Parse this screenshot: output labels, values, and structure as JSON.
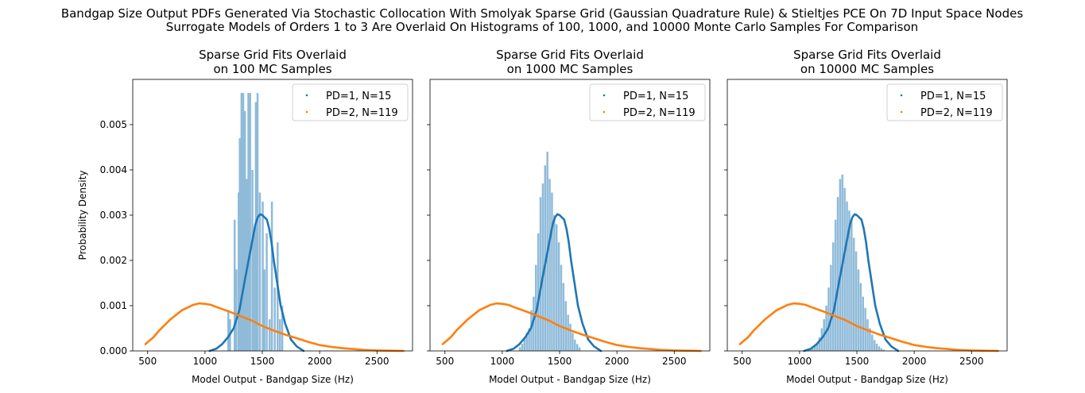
{
  "figure": {
    "suptitle_line1": "Bandgap Size Output PDFs Generated Via Stochastic Collocation With Smolyak Sparse Grid (Gaussian Quadrature Rule) & Stieltjes PCE On 7D Input Space Nodes",
    "suptitle_line2": "Surrogate Models of Orders 1 to 3 Are Overlaid On Histograms of 100, 1000, and 10000 Monte Carlo Samples For Comparison",
    "ylabel": "Probability Density",
    "xlabel": "Model Output - Bandgap Size (Hz)"
  },
  "colors": {
    "pd1": "#1f77b4",
    "pd2": "#ff7f0e",
    "hist": "#8fbbd9"
  },
  "chart_data": [
    {
      "type": "line",
      "title_line1": "Sparse Grid Fits Overlaid",
      "title_line2": "on 100 MC Samples",
      "xlim": [
        370,
        2810
      ],
      "ylim": [
        0,
        0.006
      ],
      "xticks": [
        500,
        1000,
        1500,
        2000,
        2500
      ],
      "yticks": [
        0.0,
        0.001,
        0.002,
        0.003,
        0.004,
        0.005
      ],
      "ytick_labels": [
        "0.000",
        "0.001",
        "0.002",
        "0.003",
        "0.004",
        "0.005"
      ],
      "legend": [
        "PD=1, N=15",
        "PD=2, N=119"
      ],
      "legend_loc": "upper right",
      "histogram": {
        "bins": [
          {
            "x": 1195,
            "y": 0.0009
          },
          {
            "x": 1210,
            "y": 0.0007
          },
          {
            "x": 1250,
            "y": 0.0029
          },
          {
            "x": 1265,
            "y": 0.0018
          },
          {
            "x": 1285,
            "y": 0.0035
          },
          {
            "x": 1295,
            "y": 0.0047
          },
          {
            "x": 1310,
            "y": 0.0057
          },
          {
            "x": 1325,
            "y": 0.0057
          },
          {
            "x": 1340,
            "y": 0.0053
          },
          {
            "x": 1355,
            "y": 0.0038
          },
          {
            "x": 1370,
            "y": 0.0057
          },
          {
            "x": 1385,
            "y": 0.0057
          },
          {
            "x": 1405,
            "y": 0.004
          },
          {
            "x": 1420,
            "y": 0.0026
          },
          {
            "x": 1435,
            "y": 0.0055
          },
          {
            "x": 1450,
            "y": 0.0057
          },
          {
            "x": 1470,
            "y": 0.0035
          },
          {
            "x": 1495,
            "y": 0.0033
          },
          {
            "x": 1510,
            "y": 0.0018
          },
          {
            "x": 1530,
            "y": 0.0026
          },
          {
            "x": 1555,
            "y": 0.0007
          },
          {
            "x": 1575,
            "y": 0.0033
          },
          {
            "x": 1600,
            "y": 0.0014
          },
          {
            "x": 1625,
            "y": 0.0024
          },
          {
            "x": 1645,
            "y": 0.0007
          },
          {
            "x": 1665,
            "y": 0.001
          }
        ]
      }
    },
    {
      "type": "line",
      "title_line1": "Sparse Grid Fits Overlaid",
      "title_line2": "on 1000 MC Samples",
      "xlim": [
        370,
        2810
      ],
      "ylim": [
        0,
        0.006
      ],
      "xticks": [
        500,
        1000,
        1500,
        2000,
        2500
      ],
      "yticks": [
        0.0,
        0.001,
        0.002,
        0.003,
        0.004,
        0.005
      ],
      "legend": [
        "PD=1, N=15",
        "PD=2, N=119"
      ],
      "legend_loc": "upper right",
      "histogram": {
        "bins": [
          {
            "x": 1145,
            "y": 8e-05
          },
          {
            "x": 1165,
            "y": 0.00016
          },
          {
            "x": 1185,
            "y": 0.0003
          },
          {
            "x": 1205,
            "y": 0.0004
          },
          {
            "x": 1225,
            "y": 0.0005
          },
          {
            "x": 1245,
            "y": 0.0009
          },
          {
            "x": 1265,
            "y": 0.0012
          },
          {
            "x": 1285,
            "y": 0.0019
          },
          {
            "x": 1305,
            "y": 0.0026
          },
          {
            "x": 1325,
            "y": 0.0034
          },
          {
            "x": 1345,
            "y": 0.0037
          },
          {
            "x": 1365,
            "y": 0.0041
          },
          {
            "x": 1385,
            "y": 0.0044
          },
          {
            "x": 1405,
            "y": 0.0038
          },
          {
            "x": 1425,
            "y": 0.0035
          },
          {
            "x": 1445,
            "y": 0.003
          },
          {
            "x": 1465,
            "y": 0.0028
          },
          {
            "x": 1485,
            "y": 0.0024
          },
          {
            "x": 1505,
            "y": 0.0019
          },
          {
            "x": 1525,
            "y": 0.0015
          },
          {
            "x": 1545,
            "y": 0.0011
          },
          {
            "x": 1565,
            "y": 0.0008
          },
          {
            "x": 1585,
            "y": 0.0006
          },
          {
            "x": 1605,
            "y": 0.0004
          },
          {
            "x": 1625,
            "y": 0.00025
          },
          {
            "x": 1645,
            "y": 0.00015
          },
          {
            "x": 1665,
            "y": 8e-05
          }
        ]
      }
    },
    {
      "type": "line",
      "title_line1": "Sparse Grid Fits Overlaid",
      "title_line2": "on 10000 MC Samples",
      "xlim": [
        370,
        2810
      ],
      "ylim": [
        0,
        0.006
      ],
      "xticks": [
        500,
        1000,
        1500,
        2000,
        2500
      ],
      "yticks": [
        0.0,
        0.001,
        0.002,
        0.003,
        0.004,
        0.005
      ],
      "legend": [
        "PD=1, N=15",
        "PD=2, N=119"
      ],
      "legend_loc": "upper right",
      "histogram": {
        "bins": [
          {
            "x": 1085,
            "y": 3e-05
          },
          {
            "x": 1105,
            "y": 6e-05
          },
          {
            "x": 1125,
            "y": 0.0001
          },
          {
            "x": 1145,
            "y": 0.00018
          },
          {
            "x": 1165,
            "y": 0.0003
          },
          {
            "x": 1185,
            "y": 0.0005
          },
          {
            "x": 1205,
            "y": 0.0007
          },
          {
            "x": 1225,
            "y": 0.001
          },
          {
            "x": 1245,
            "y": 0.0014
          },
          {
            "x": 1265,
            "y": 0.0019
          },
          {
            "x": 1285,
            "y": 0.0024
          },
          {
            "x": 1305,
            "y": 0.0029
          },
          {
            "x": 1325,
            "y": 0.0034
          },
          {
            "x": 1345,
            "y": 0.0038
          },
          {
            "x": 1365,
            "y": 0.0039
          },
          {
            "x": 1385,
            "y": 0.0036
          },
          {
            "x": 1405,
            "y": 0.0033
          },
          {
            "x": 1425,
            "y": 0.0031
          },
          {
            "x": 1445,
            "y": 0.0029
          },
          {
            "x": 1465,
            "y": 0.0025
          },
          {
            "x": 1485,
            "y": 0.0022
          },
          {
            "x": 1505,
            "y": 0.0018
          },
          {
            "x": 1525,
            "y": 0.0015
          },
          {
            "x": 1545,
            "y": 0.0012
          },
          {
            "x": 1565,
            "y": 0.00095
          },
          {
            "x": 1585,
            "y": 0.0007
          },
          {
            "x": 1605,
            "y": 0.0005
          },
          {
            "x": 1625,
            "y": 0.00036
          },
          {
            "x": 1645,
            "y": 0.00024
          },
          {
            "x": 1665,
            "y": 0.00016
          },
          {
            "x": 1685,
            "y": 0.0001
          },
          {
            "x": 1705,
            "y": 6e-05
          },
          {
            "x": 1725,
            "y": 3e-05
          }
        ]
      }
    }
  ],
  "curves": {
    "pd1": {
      "name": "PD=1, N=15",
      "points": [
        [
          1040,
          0.0
        ],
        [
          1100,
          5e-05
        ],
        [
          1150,
          0.00015
        ],
        [
          1200,
          0.0003
        ],
        [
          1250,
          0.0005
        ],
        [
          1300,
          0.0009
        ],
        [
          1350,
          0.0016
        ],
        [
          1380,
          0.002
        ],
        [
          1410,
          0.0024
        ],
        [
          1440,
          0.0028
        ],
        [
          1460,
          0.00295
        ],
        [
          1480,
          0.00302
        ],
        [
          1500,
          0.003
        ],
        [
          1520,
          0.00295
        ],
        [
          1540,
          0.0029
        ],
        [
          1560,
          0.0027
        ],
        [
          1580,
          0.0024
        ],
        [
          1600,
          0.002
        ],
        [
          1630,
          0.0015
        ],
        [
          1660,
          0.001
        ],
        [
          1700,
          0.0006
        ],
        [
          1750,
          0.00025
        ],
        [
          1800,
          0.0001
        ],
        [
          1860,
          0.0
        ]
      ]
    },
    "pd2": {
      "name": "PD=2, N=119",
      "points": [
        [
          480,
          0.00015
        ],
        [
          550,
          0.0003
        ],
        [
          600,
          0.00045
        ],
        [
          700,
          0.0007
        ],
        [
          800,
          0.0009
        ],
        [
          900,
          0.00102
        ],
        [
          950,
          0.00105
        ],
        [
          1000,
          0.00104
        ],
        [
          1050,
          0.00102
        ],
        [
          1100,
          0.00097
        ],
        [
          1200,
          0.00088
        ],
        [
          1300,
          0.00078
        ],
        [
          1400,
          0.00068
        ],
        [
          1500,
          0.00055
        ],
        [
          1600,
          0.00045
        ],
        [
          1700,
          0.00036
        ],
        [
          1800,
          0.00028
        ],
        [
          1900,
          0.0002
        ],
        [
          2000,
          0.00013
        ],
        [
          2100,
          9e-05
        ],
        [
          2200,
          6e-05
        ],
        [
          2300,
          4e-05
        ],
        [
          2400,
          2e-05
        ],
        [
          2500,
          1e-05
        ],
        [
          2600,
          5e-06
        ],
        [
          2730,
          0.0
        ]
      ]
    }
  }
}
